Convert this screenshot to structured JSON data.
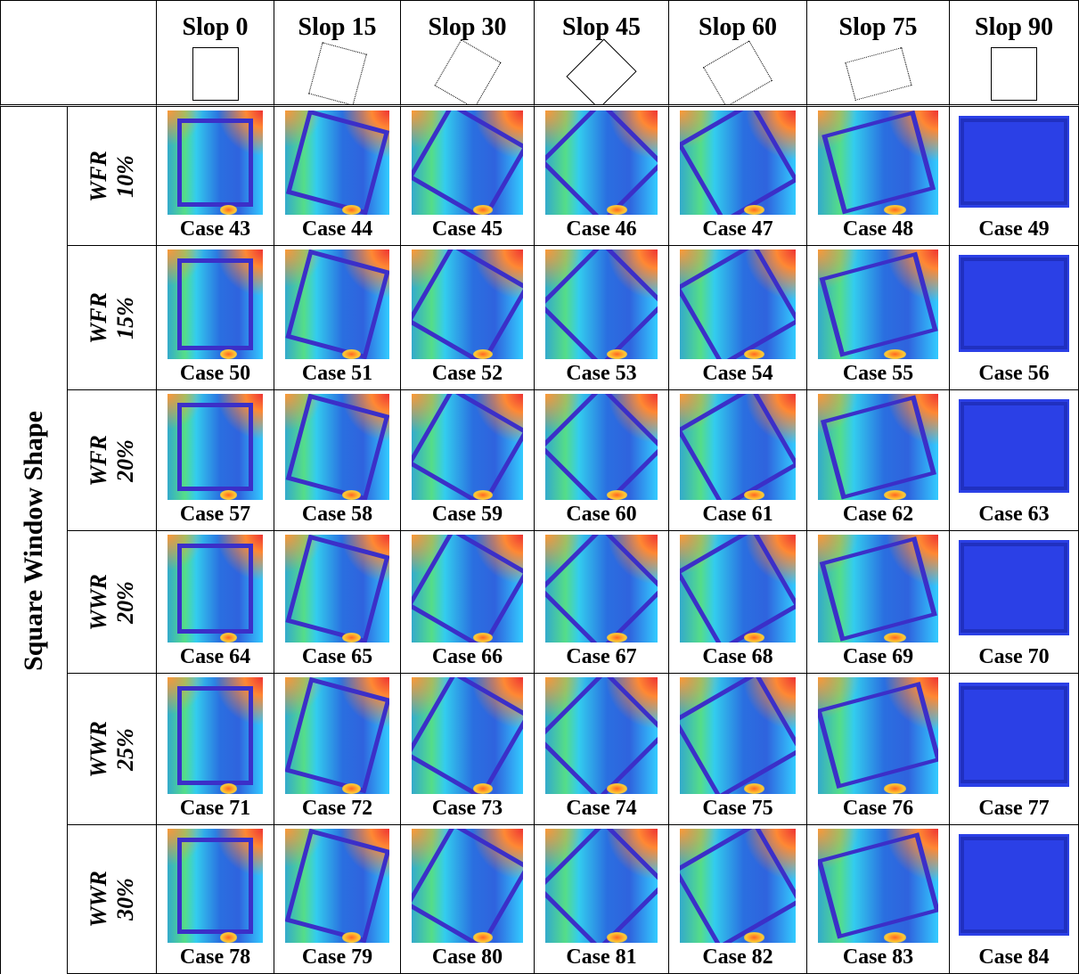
{
  "table": {
    "columns": [
      "Slop 0",
      "Slop 15",
      "Slop 30",
      "Slop 45",
      "Slop 60",
      "Slop 75",
      "Slop 90"
    ],
    "group_label": "Square Window Shape",
    "rows": [
      {
        "label": [
          "WFR",
          "10%"
        ],
        "cases": [
          "Case 43",
          "Case 44",
          "Case 45",
          "Case 46",
          "Case 47",
          "Case 48",
          "Case 49"
        ]
      },
      {
        "label": [
          "WFR",
          "15%"
        ],
        "cases": [
          "Case 50",
          "Case 51",
          "Case 52",
          "Case 53",
          "Case 54",
          "Case 55",
          "Case 56"
        ]
      },
      {
        "label": [
          "WFR",
          "20%"
        ],
        "cases": [
          "Case 57",
          "Case 58",
          "Case 59",
          "Case 60",
          "Case 61",
          "Case 62",
          "Case 63"
        ]
      },
      {
        "label": [
          "WWR",
          "20%"
        ],
        "cases": [
          "Case 64",
          "Case 65",
          "Case 66",
          "Case 67",
          "Case 68",
          "Case 69",
          "Case 70"
        ]
      },
      {
        "label": [
          "WWR",
          "25%"
        ],
        "cases": [
          "Case 71",
          "Case 72",
          "Case 73",
          "Case 74",
          "Case 75",
          "Case 76",
          "Case 77"
        ]
      },
      {
        "label": [
          "WWR",
          "30%"
        ],
        "cases": [
          "Case 78",
          "Case 79",
          "Case 80",
          "Case 81",
          "Case 82",
          "Case 83",
          "Case 84"
        ]
      }
    ]
  }
}
